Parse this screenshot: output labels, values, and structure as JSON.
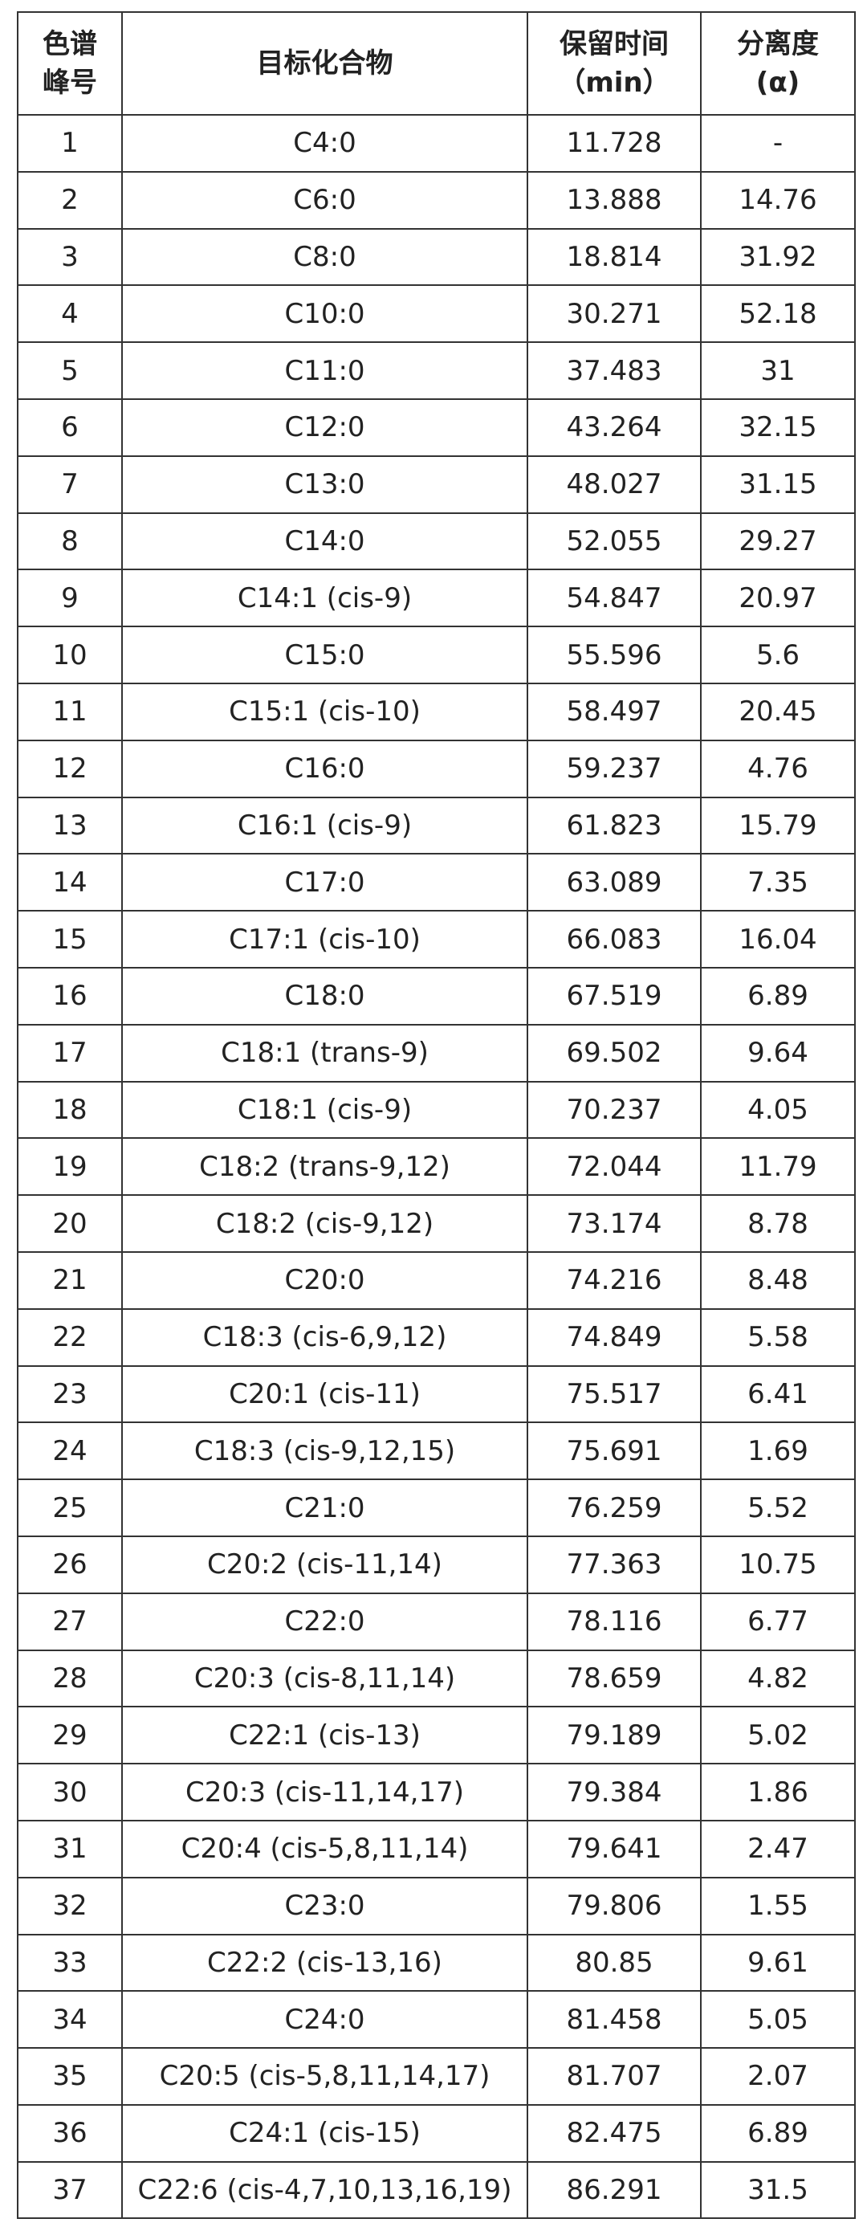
{
  "table": {
    "header": [
      [
        "色谱",
        "峰号"
      ],
      [
        "目标化合物"
      ],
      [
        "保留时间",
        "（min）"
      ],
      [
        "分离度",
        "(α)"
      ]
    ],
    "rows": [
      [
        "1",
        "C4:0",
        "11.728",
        "-"
      ],
      [
        "2",
        "C6:0",
        "13.888",
        "14.76"
      ],
      [
        "3",
        "C8:0",
        "18.814",
        "31.92"
      ],
      [
        "4",
        "C10:0",
        "30.271",
        "52.18"
      ],
      [
        "5",
        "C11:0",
        "37.483",
        "31"
      ],
      [
        "6",
        "C12:0",
        "43.264",
        "32.15"
      ],
      [
        "7",
        "C13:0",
        "48.027",
        "31.15"
      ],
      [
        "8",
        "C14:0",
        "52.055",
        "29.27"
      ],
      [
        "9",
        "C14:1 (cis-9)",
        "54.847",
        "20.97"
      ],
      [
        "10",
        "C15:0",
        "55.596",
        "5.6"
      ],
      [
        "11",
        "C15:1 (cis-10)",
        "58.497",
        "20.45"
      ],
      [
        "12",
        "C16:0",
        "59.237",
        "4.76"
      ],
      [
        "13",
        "C16:1 (cis-9)",
        "61.823",
        "15.79"
      ],
      [
        "14",
        "C17:0",
        "63.089",
        "7.35"
      ],
      [
        "15",
        "C17:1 (cis-10)",
        "66.083",
        "16.04"
      ],
      [
        "16",
        "C18:0",
        "67.519",
        "6.89"
      ],
      [
        "17",
        "C18:1 (trans-9)",
        "69.502",
        "9.64"
      ],
      [
        "18",
        "C18:1 (cis-9)",
        "70.237",
        "4.05"
      ],
      [
        "19",
        "C18:2 (trans-9,12)",
        "72.044",
        "11.79"
      ],
      [
        "20",
        "C18:2 (cis-9,12)",
        "73.174",
        "8.78"
      ],
      [
        "21",
        "C20:0",
        "74.216",
        "8.48"
      ],
      [
        "22",
        "C18:3 (cis-6,9,12)",
        "74.849",
        "5.58"
      ],
      [
        "23",
        "C20:1 (cis-11)",
        "75.517",
        "6.41"
      ],
      [
        "24",
        "C18:3 (cis-9,12,15)",
        "75.691",
        "1.69"
      ],
      [
        "25",
        "C21:0",
        "76.259",
        "5.52"
      ],
      [
        "26",
        "C20:2 (cis-11,14)",
        "77.363",
        "10.75"
      ],
      [
        "27",
        "C22:0",
        "78.116",
        "6.77"
      ],
      [
        "28",
        "C20:3 (cis-8,11,14)",
        "78.659",
        "4.82"
      ],
      [
        "29",
        "C22:1 (cis-13)",
        "79.189",
        "5.02"
      ],
      [
        "30",
        "C20:3 (cis-11,14,17)",
        "79.384",
        "1.86"
      ],
      [
        "31",
        "C20:4 (cis-5,8,11,14)",
        "79.641",
        "2.47"
      ],
      [
        "32",
        "C23:0",
        "79.806",
        "1.55"
      ],
      [
        "33",
        "C22:2 (cis-13,16)",
        "80.85",
        "9.61"
      ],
      [
        "34",
        "C24:0",
        "81.458",
        "5.05"
      ],
      [
        "35",
        "C20:5 (cis-5,8,11,14,17)",
        "81.707",
        "2.07"
      ],
      [
        "36",
        "C24:1 (cis-15)",
        "82.475",
        "6.89"
      ],
      [
        "37",
        "C22:6 (cis-4,7,10,13,16,19)",
        "86.291",
        "31.5"
      ]
    ]
  }
}
